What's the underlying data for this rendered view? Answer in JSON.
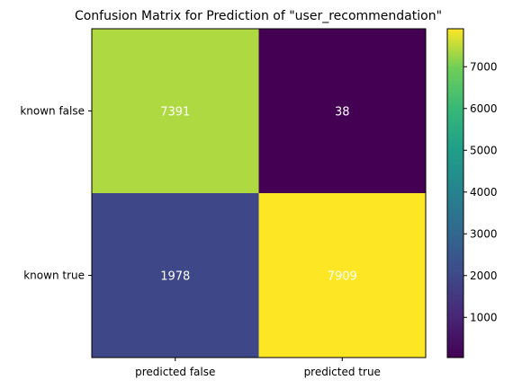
{
  "chart_data": {
    "type": "heatmap",
    "title": "Confusion Matrix for Prediction of \"user_recommendation\"",
    "xlabel": "",
    "ylabel": "",
    "x_categories": [
      "predicted false",
      "predicted true"
    ],
    "y_categories": [
      "known false",
      "known true"
    ],
    "values": [
      [
        7391,
        38
      ],
      [
        1978,
        7909
      ]
    ],
    "colormap": "viridis",
    "colorbar": {
      "range": [
        38,
        7909
      ],
      "ticks": [
        1000,
        2000,
        3000,
        4000,
        5000,
        6000,
        7000
      ]
    },
    "cell_label_color": "#ffffff"
  }
}
